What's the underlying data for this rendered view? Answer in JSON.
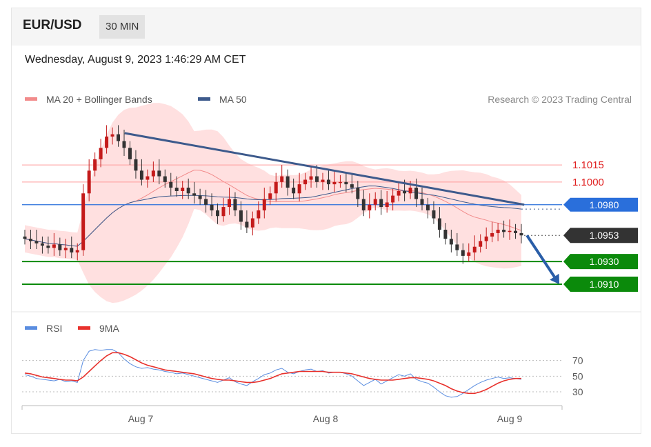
{
  "header": {
    "pair": "EUR/USD",
    "timeframe": "30 MIN"
  },
  "date_line": "Wednesday, August 9, 2023 1:46:29 AM CET",
  "credit": "Research © 2023 Trading Central",
  "colors": {
    "bollinger": "#f28b8b",
    "ma50": "#3d5a8c",
    "resistance": "#ff9a9a",
    "pivot": "#2a6fdb",
    "support": "#0b8a0b",
    "current": "#333333",
    "rsi": "#5a8de0",
    "rsi_ma": "#e8312c",
    "bull": "#c41a1a",
    "bear": "#333333"
  },
  "chart_data": [
    {
      "type": "candlestick",
      "legend": [
        {
          "label": "MA 20 + Bollinger Bands",
          "color": "#f28b8b"
        },
        {
          "label": "MA 50",
          "color": "#3d5a8c"
        }
      ],
      "x_ticks": [
        "Aug 7",
        "Aug 8",
        "Aug 9"
      ],
      "ylim": [
        1.089,
        1.106
      ],
      "levels": [
        {
          "value": 1.1015,
          "label": "1.1015",
          "kind": "resistance",
          "style": "text"
        },
        {
          "value": 1.1,
          "label": "1.1000",
          "kind": "resistance",
          "style": "text"
        },
        {
          "value": 1.098,
          "label": "1.0980",
          "kind": "pivot",
          "style": "tag"
        },
        {
          "value": 1.0953,
          "label": "1.0953",
          "kind": "current",
          "style": "tag"
        },
        {
          "value": 1.093,
          "label": "1.0930",
          "kind": "support",
          "style": "tag"
        },
        {
          "value": 1.091,
          "label": "1.0910",
          "kind": "support",
          "style": "tag"
        }
      ],
      "trendline": {
        "from": [
          0.19,
          1.1043
        ],
        "to": [
          0.93,
          1.098
        ]
      },
      "forecast_arrow": {
        "from": [
          0.935,
          1.0953
        ],
        "to": [
          0.995,
          1.091
        ]
      },
      "close_series": [
        1.095,
        1.0948,
        1.0946,
        1.0944,
        1.0942,
        1.0945,
        1.094,
        1.0942,
        1.0938,
        1.094,
        1.099,
        1.101,
        1.102,
        1.103,
        1.104,
        1.1042,
        1.1036,
        1.103,
        1.102,
        1.101,
        1.1002,
        1.1005,
        1.101,
        1.1005,
        1.1,
        1.0995,
        1.0992,
        1.0995,
        1.099,
        1.0988,
        1.0985,
        1.098,
        1.0975,
        1.097,
        1.0978,
        1.0985,
        1.0975,
        1.0965,
        1.096,
        1.0968,
        1.0975,
        1.0985,
        1.099,
        1.1,
        1.1005,
        1.0995,
        1.099,
        1.0998,
        1.1002,
        1.1005,
        1.1,
        1.1002,
        1.0998,
        1.1,
        1.1,
        1.0998,
        1.0995,
        1.0985,
        1.0975,
        1.098,
        1.0985,
        1.0978,
        1.0982,
        1.0988,
        1.0992,
        1.099,
        1.0995,
        1.0985,
        1.098,
        1.0975,
        1.0968,
        1.0958,
        1.095,
        1.0945,
        1.094,
        1.0935,
        1.0938,
        1.0943,
        1.0948,
        1.0952,
        1.0955,
        1.0958,
        1.0956,
        1.0957,
        1.0955,
        1.0953
      ]
    },
    {
      "type": "line",
      "legend": [
        {
          "label": "RSI",
          "color": "#5a8de0"
        },
        {
          "label": "9MA",
          "color": "#e8312c"
        }
      ],
      "ylim": [
        15,
        90
      ],
      "y_ticks": [
        70,
        50,
        30
      ],
      "series": [
        {
          "name": "RSI",
          "values": [
            52,
            50,
            47,
            46,
            45,
            44,
            46,
            43,
            44,
            42,
            70,
            82,
            84,
            83,
            84,
            84,
            80,
            72,
            66,
            62,
            60,
            61,
            59,
            58,
            56,
            55,
            53,
            54,
            52,
            50,
            48,
            46,
            44,
            42,
            45,
            48,
            43,
            40,
            38,
            43,
            47,
            52,
            54,
            58,
            60,
            55,
            53,
            56,
            58,
            59,
            56,
            57,
            54,
            55,
            55,
            53,
            50,
            44,
            38,
            42,
            46,
            40,
            44,
            48,
            52,
            50,
            53,
            46,
            43,
            41,
            36,
            30,
            25,
            23,
            24,
            28,
            33,
            38,
            42,
            45,
            47,
            49,
            47,
            48,
            47,
            46
          ]
        },
        {
          "name": "9MA",
          "values": [
            54,
            53,
            51,
            49,
            48,
            47,
            46,
            45,
            45,
            44,
            49,
            56,
            63,
            70,
            76,
            80,
            80,
            78,
            75,
            71,
            67,
            64,
            62,
            60,
            58,
            57,
            56,
            55,
            54,
            53,
            51,
            49,
            47,
            46,
            45,
            45,
            44,
            43,
            42,
            42,
            43,
            45,
            47,
            50,
            53,
            54,
            55,
            56,
            56,
            56,
            56,
            56,
            55,
            55,
            55,
            54,
            53,
            51,
            49,
            47,
            46,
            45,
            45,
            45,
            46,
            47,
            48,
            48,
            47,
            46,
            44,
            41,
            38,
            34,
            31,
            29,
            28,
            28,
            30,
            33,
            37,
            41,
            44,
            46,
            47,
            47
          ]
        }
      ]
    }
  ]
}
